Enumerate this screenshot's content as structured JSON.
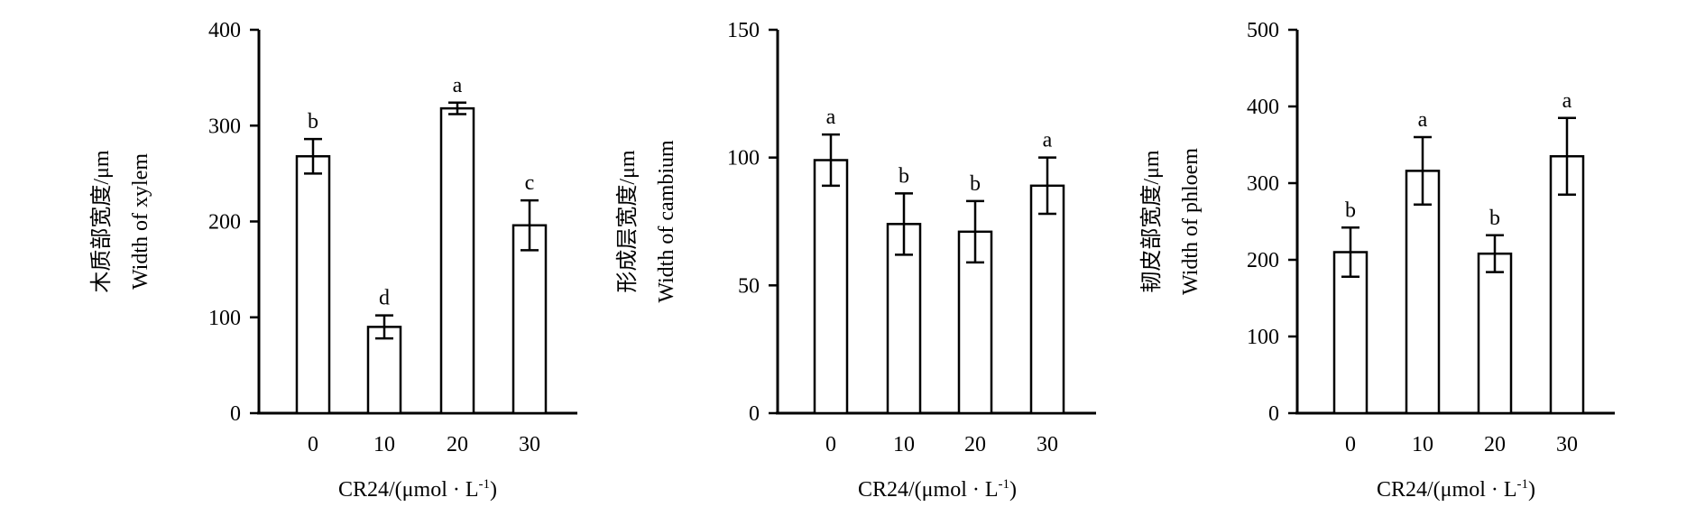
{
  "chart_data": [
    {
      "type": "bar",
      "categories": [
        "0",
        "10",
        "20",
        "30"
      ],
      "values": [
        268,
        90,
        318,
        196
      ],
      "errors": [
        18,
        12,
        6,
        26
      ],
      "significance": [
        "b",
        "d",
        "a",
        "c"
      ],
      "ylim": [
        0,
        400
      ],
      "yticks": [
        "0",
        "100",
        "200",
        "300",
        "400"
      ],
      "ylabel_cn": "木质部宽度/μm",
      "ylabel_en": "Width of xylem",
      "xlabel": "CR24/(μmol · L-1)",
      "grid": false
    },
    {
      "type": "bar",
      "categories": [
        "0",
        "10",
        "20",
        "30"
      ],
      "values": [
        99,
        74,
        71,
        89
      ],
      "errors": [
        10,
        12,
        12,
        11
      ],
      "significance": [
        "a",
        "b",
        "b",
        "a"
      ],
      "ylim": [
        0,
        150
      ],
      "yticks": [
        "0",
        "50",
        "100",
        "150"
      ],
      "ylabel_cn": "形成层宽度/μm",
      "ylabel_en": "Width of cambium",
      "xlabel": "CR24/(μmol · L-1)",
      "grid": false
    },
    {
      "type": "bar",
      "categories": [
        "0",
        "10",
        "20",
        "30"
      ],
      "values": [
        210,
        316,
        208,
        335
      ],
      "errors": [
        32,
        44,
        24,
        50
      ],
      "significance": [
        "b",
        "a",
        "b",
        "a"
      ],
      "ylim": [
        0,
        500
      ],
      "yticks": [
        "0",
        "100",
        "200",
        "300",
        "400",
        "500"
      ],
      "ylabel_cn": "韧皮部宽度/μm",
      "ylabel_en": "Width of phloem",
      "xlabel": "CR24/(μmol · L-1)",
      "grid": false
    }
  ]
}
